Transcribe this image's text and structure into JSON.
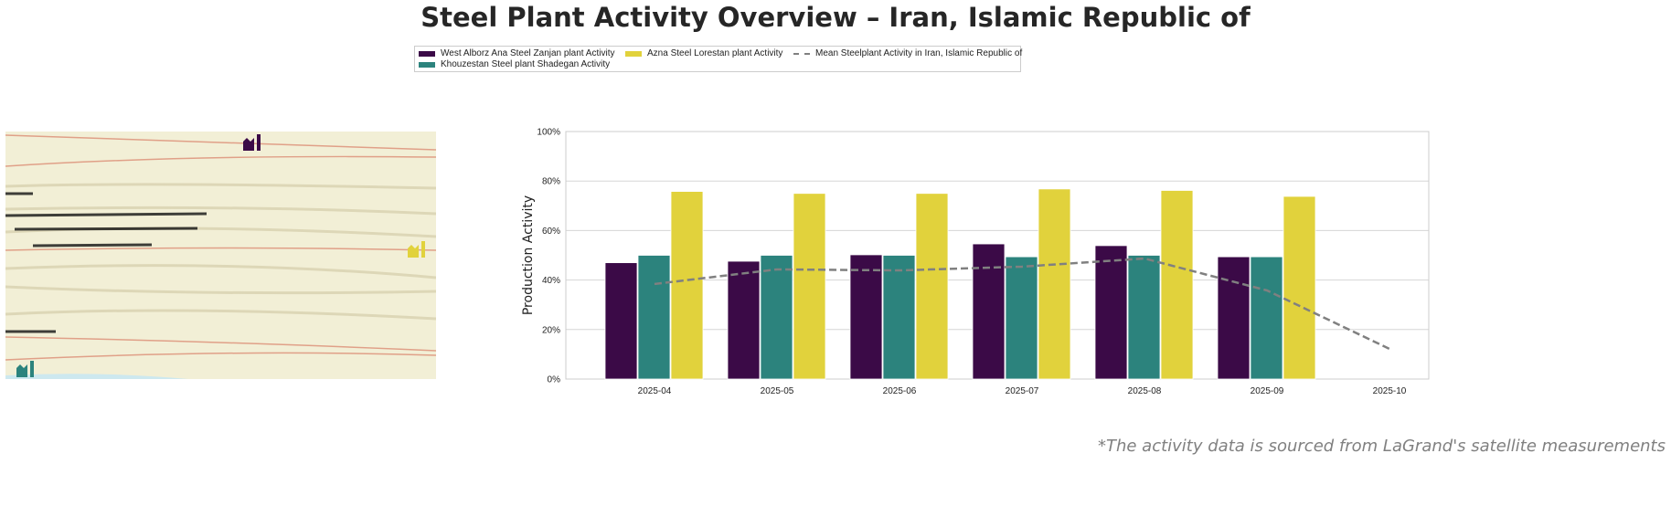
{
  "title": "Steel Plant Activity Overview – Iran, Islamic Republic of",
  "legend": [
    {
      "label": "West Alborz Ana Steel Zanjan plant Activity",
      "color": "#3b0a47"
    },
    {
      "label": "Khouzestan Steel plant Shadegan Activity",
      "color": "#2c837d"
    },
    {
      "label": "Azna Steel Lorestan plant Activity",
      "color": "#e1d23c"
    },
    {
      "label": "Mean Steelplant Activity in Iran, Islamic Republic of",
      "color": "#808080"
    }
  ],
  "map": {
    "icons": [
      "factory-icon-purple",
      "factory-icon-yellow",
      "factory-icon-teal"
    ]
  },
  "chart_data": {
    "type": "bar",
    "title": "",
    "xlabel": "",
    "ylabel": "Production Activity",
    "ylim": [
      0,
      100
    ],
    "yticks": [
      "0%",
      "20%",
      "40%",
      "60%",
      "80%",
      "100%"
    ],
    "grid": true,
    "categories": [
      "2025-04",
      "2025-05",
      "2025-06",
      "2025-07",
      "2025-08",
      "2025-09",
      "2025-10"
    ],
    "series": [
      {
        "name": "West Alborz Ana Steel Zanjan plant Activity",
        "color": "#3b0a47",
        "values": [
          47,
          47.6,
          50.2,
          54.6,
          53.9,
          49.4,
          null
        ]
      },
      {
        "name": "Khouzestan Steel plant Shadegan Activity",
        "color": "#2c837d",
        "values": [
          50,
          50,
          50,
          49.4,
          50,
          49.4,
          null
        ]
      },
      {
        "name": "Azna Steel Lorestan plant Activity",
        "color": "#e1d23c",
        "values": [
          75.8,
          75,
          75,
          76.8,
          76.2,
          73.8,
          null
        ]
      }
    ],
    "line": {
      "name": "Mean Steelplant Activity in Iran, Islamic Republic of",
      "color": "#808080",
      "values": [
        38.4,
        44.3,
        43.9,
        45.4,
        48.7,
        35.8,
        12.2
      ]
    }
  },
  "footnote": "*The activity data is sourced from LaGrand's satellite measurements"
}
